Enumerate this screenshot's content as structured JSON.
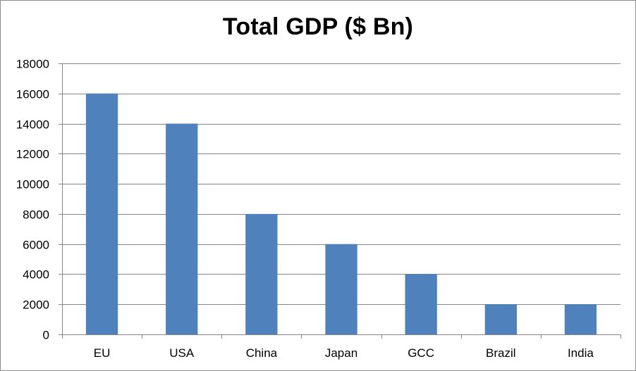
{
  "chart_data": {
    "type": "bar",
    "title": "Total GDP ($ Bn)",
    "xlabel": "",
    "ylabel": "",
    "categories": [
      "EU",
      "USA",
      "China",
      "Japan",
      "GCC",
      "Brazil",
      "India"
    ],
    "values": [
      16000,
      14000,
      8000,
      6000,
      4000,
      2000,
      2000
    ],
    "ylim": [
      0,
      18000
    ],
    "yticks": [
      "0",
      "2000",
      "4000",
      "6000",
      "8000",
      "10000",
      "12000",
      "14000",
      "16000",
      "18000"
    ],
    "grid": true,
    "legend": "none",
    "bar_color": "#4f81bd",
    "gridline_color": "#868686"
  }
}
